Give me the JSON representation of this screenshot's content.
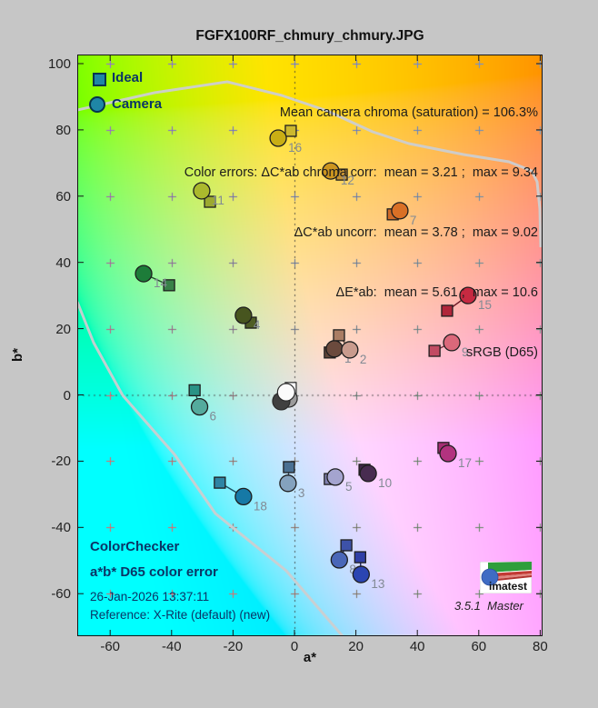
{
  "title": "FGFX100RF_chmury_chmury.JPG",
  "legend": {
    "ideal": "Ideal",
    "camera": "Camera"
  },
  "stats": {
    "lines": [
      "Mean camera chroma (saturation) = 106.3%",
      "Color errors: ΔC*ab chroma corr:  mean = 3.21 ;  max = 9.34",
      "ΔC*ab uncorr:  mean = 3.78 ;  max = 9.02",
      "ΔE*ab:  mean = 5.61 ;  max = 10.6",
      "sRGB (D65)"
    ]
  },
  "info": {
    "line1": "ColorChecker",
    "line2": "a*b* D65 color error",
    "line3": "26-Jan-2026 13:37:11",
    "line4": "Reference: X-Rite (default) (new)"
  },
  "branding": {
    "logo_text": "imatest",
    "version": "3.5.1",
    "edition": "Master"
  },
  "chart_data": {
    "type": "scatter",
    "title": "FGFX100RF_chmury_chmury.JPG",
    "xlabel": "a*",
    "ylabel": "b*",
    "xlim": [
      -70.7,
      80.8
    ],
    "ylim": [
      -72.8,
      102.7
    ],
    "x_ticks": [
      -60,
      -40,
      -20,
      0,
      20,
      40,
      60,
      80
    ],
    "y_ticks": [
      -60,
      -40,
      -20,
      0,
      20,
      40,
      60,
      80,
      100
    ],
    "grid": "plus-markers at every 20 units; dotted lines through a*=0 and b*=0",
    "legend_position": "top-left",
    "series_names": [
      "Ideal (square)",
      "Camera (circle)"
    ],
    "patches": [
      {
        "id": 1,
        "label": "1",
        "ideal": {
          "a": 11.5,
          "b": 12.8
        },
        "camera": {
          "a": 13.0,
          "b": 13.9
        },
        "ideal_color": "#5e4337",
        "camera_color": "#6b4a3d"
      },
      {
        "id": 2,
        "label": "2",
        "ideal": {
          "a": 14.5,
          "b": 18.0
        },
        "camera": {
          "a": 18.0,
          "b": 13.6
        },
        "ideal_color": "#aa7d64",
        "camera_color": "#c99b8d"
      },
      {
        "id": 3,
        "label": "3",
        "ideal": {
          "a": -1.8,
          "b": -21.8
        },
        "camera": {
          "a": -2.1,
          "b": -26.7
        },
        "ideal_color": "#4a7092",
        "camera_color": "#84a2be"
      },
      {
        "id": 4,
        "label": "4",
        "ideal": {
          "a": -14.2,
          "b": 21.8
        },
        "camera": {
          "a": -16.6,
          "b": 24.0
        },
        "ideal_color": "#4f5d26",
        "camera_color": "#47551f"
      },
      {
        "id": 5,
        "label": "5",
        "ideal": {
          "a": 11.5,
          "b": -25.4
        },
        "camera": {
          "a": 13.3,
          "b": -24.8
        },
        "ideal_color": "#8080b0",
        "camera_color": "#a4a4cf"
      },
      {
        "id": 6,
        "label": "6",
        "ideal": {
          "a": -32.5,
          "b": 1.4
        },
        "camera": {
          "a": -30.9,
          "b": -3.6
        },
        "ideal_color": "#2a9285",
        "camera_color": "#54ab9d"
      },
      {
        "id": 7,
        "label": "7",
        "ideal": {
          "a": 32.0,
          "b": 54.5
        },
        "camera": {
          "a": 34.3,
          "b": 55.6
        },
        "ideal_color": "#cd6a28",
        "camera_color": "#d97026"
      },
      {
        "id": 8,
        "label": "8",
        "ideal": {
          "a": 16.9,
          "b": -45.4
        },
        "camera": {
          "a": 14.6,
          "b": -49.8
        },
        "ideal_color": "#3d52a8",
        "camera_color": "#4a67b8"
      },
      {
        "id": 9,
        "label": "9",
        "ideal": {
          "a": 45.6,
          "b": 13.3
        },
        "camera": {
          "a": 51.2,
          "b": 15.8
        },
        "ideal_color": "#c14b63",
        "camera_color": "#db687a"
      },
      {
        "id": 10,
        "label": "10",
        "ideal": {
          "a": 22.8,
          "b": -22.6
        },
        "camera": {
          "a": 24.0,
          "b": -23.7
        },
        "ideal_color": "#3f2847",
        "camera_color": "#482c50"
      },
      {
        "id": 11,
        "label": "11",
        "ideal": {
          "a": -27.5,
          "b": 58.3
        },
        "camera": {
          "a": -30.2,
          "b": 61.6
        },
        "ideal_color": "#9ca930",
        "camera_color": "#abb92d"
      },
      {
        "id": 12,
        "label": "12",
        "ideal": {
          "a": 15.4,
          "b": 66.5
        },
        "camera": {
          "a": 11.8,
          "b": 67.6
        },
        "ideal_color": "#c59233",
        "camera_color": "#cc951f"
      },
      {
        "id": 13,
        "label": "13",
        "ideal": {
          "a": 21.4,
          "b": -49.0
        },
        "camera": {
          "a": 21.7,
          "b": -54.2
        },
        "ideal_color": "#2f3fa6",
        "camera_color": "#2b45b2"
      },
      {
        "id": 14,
        "label": "14",
        "ideal": {
          "a": -40.8,
          "b": 33.1
        },
        "camera": {
          "a": -49.1,
          "b": 36.6
        },
        "ideal_color": "#388148",
        "camera_color": "#1d7c39"
      },
      {
        "id": 15,
        "label": "15",
        "ideal": {
          "a": 49.7,
          "b": 25.4
        },
        "camera": {
          "a": 56.5,
          "b": 30.0
        },
        "ideal_color": "#b1273a",
        "camera_color": "#c62a41"
      },
      {
        "id": 16,
        "label": "16",
        "ideal": {
          "a": -1.2,
          "b": 79.7
        },
        "camera": {
          "a": -5.3,
          "b": 77.5
        },
        "ideal_color": "#ccb82e",
        "camera_color": "#c9ae14"
      },
      {
        "id": 17,
        "label": "17",
        "ideal": {
          "a": 48.5,
          "b": -16.0
        },
        "camera": {
          "a": 50.0,
          "b": -17.7
        },
        "ideal_color": "#a52e74",
        "camera_color": "#b2337f"
      },
      {
        "id": 18,
        "label": "18",
        "ideal": {
          "a": -24.3,
          "b": -26.5
        },
        "camera": {
          "a": -16.6,
          "b": -30.7
        },
        "ideal_color": "#2e84a4",
        "camera_color": "#1679a6"
      }
    ],
    "neutral_markers": [
      {
        "shape": "circle",
        "a": -1.9,
        "b": -1.1,
        "color": "#9b9b9b"
      },
      {
        "shape": "circle",
        "a": -4.3,
        "b": -1.9,
        "color": "#404040"
      },
      {
        "shape": "square",
        "a": -1.2,
        "b": 2.1,
        "color": "#ffffff"
      },
      {
        "shape": "circle",
        "a": -2.7,
        "b": 0.8,
        "color": "#fbfbfb"
      }
    ],
    "background": "CIELAB a*b* colormap at L*=90, sRGB-clipped",
    "gamut_line_color": "#ccced0"
  }
}
